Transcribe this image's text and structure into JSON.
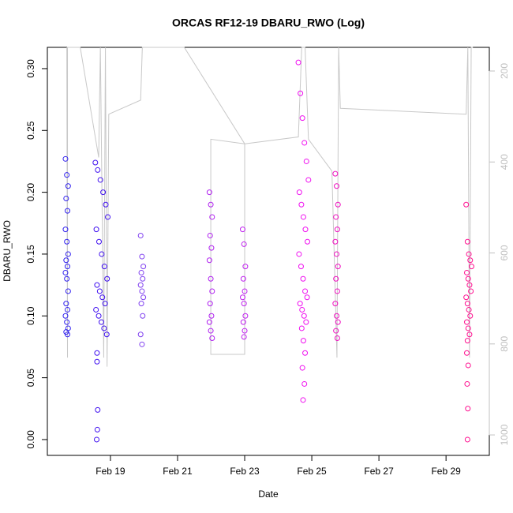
{
  "chart_data": {
    "type": "scatter",
    "title": "ORCAS RF12-19 DBARU_RWO (Log)",
    "x_label": "Date",
    "y_label": "DBARU_RWO",
    "xlim": [
      17.12,
      30.29
    ],
    "xticks": [
      {
        "value": 19,
        "label": "Feb 19"
      },
      {
        "value": 21,
        "label": "Feb 21"
      },
      {
        "value": 23,
        "label": "Feb 23"
      },
      {
        "value": 25,
        "label": "Feb 25"
      },
      {
        "value": 27,
        "label": "Feb 27"
      },
      {
        "value": 29,
        "label": "Feb 29"
      }
    ],
    "ylim": [
      -0.0128,
      0.3172
    ],
    "yticks": [
      {
        "value": 0,
        "label": "0.00"
      },
      {
        "value": 0.05,
        "label": "0.05"
      },
      {
        "value": 0.1,
        "label": "0.10"
      },
      {
        "value": 0.15,
        "label": "0.15"
      },
      {
        "value": 0.2,
        "label": "0.20"
      },
      {
        "value": 0.25,
        "label": "0.25"
      },
      {
        "value": 0.3,
        "label": "0.30"
      }
    ],
    "y2lim": [
      1045,
      148
    ],
    "y2ticks": [
      200,
      400,
      600,
      800,
      1000
    ],
    "y2_color": "#c0c0c0",
    "series": [
      {
        "color": "#3020f0",
        "x": [
          17.66,
          17.7,
          17.74,
          17.68,
          17.72,
          17.66,
          17.7,
          17.74,
          17.68,
          17.72,
          17.66,
          17.7,
          17.74,
          17.68,
          17.72,
          17.66,
          17.7,
          17.74,
          17.68,
          17.72
        ],
        "values": [
          0.227,
          0.214,
          0.205,
          0.195,
          0.185,
          0.17,
          0.16,
          0.15,
          0.145,
          0.14,
          0.135,
          0.13,
          0.12,
          0.11,
          0.105,
          0.1,
          0.095,
          0.09,
          0.087,
          0.085
        ]
      },
      {
        "color": "#4010f0",
        "x": [
          18.55,
          18.62,
          18.7,
          18.78,
          18.86,
          18.92,
          18.58,
          18.66,
          18.74,
          18.82,
          18.9,
          18.6,
          18.68,
          18.76,
          18.84,
          18.57,
          18.65,
          18.73,
          18.81,
          18.89,
          18.6,
          18.6,
          18.62,
          18.61,
          18.59
        ],
        "values": [
          0.224,
          0.218,
          0.21,
          0.2,
          0.19,
          0.18,
          0.17,
          0.16,
          0.15,
          0.14,
          0.13,
          0.125,
          0.12,
          0.115,
          0.11,
          0.105,
          0.1,
          0.095,
          0.09,
          0.085,
          0.07,
          0.063,
          0.024,
          0.008,
          0
        ]
      },
      {
        "color": "#8040f0",
        "x": [
          19.9,
          19.94,
          19.98,
          19.92,
          19.96,
          19.9,
          19.94,
          19.98,
          19.92,
          19.96,
          19.9,
          19.94
        ],
        "values": [
          0.165,
          0.148,
          0.14,
          0.135,
          0.13,
          0.125,
          0.12,
          0.115,
          0.11,
          0.1,
          0.085,
          0.077
        ]
      },
      {
        "color": "#b020f0",
        "x": [
          21.95,
          21.99,
          22.03,
          21.97,
          22.01,
          21.95,
          21.99,
          22.03,
          21.97,
          22.01,
          21.95,
          21.99,
          22.03
        ],
        "values": [
          0.2,
          0.19,
          0.18,
          0.165,
          0.155,
          0.145,
          0.13,
          0.12,
          0.11,
          0.1,
          0.095,
          0.088,
          0.082
        ]
      },
      {
        "color": "#c020f0",
        "x": [
          22.94,
          22.98,
          23.02,
          22.96,
          23.0,
          22.94,
          22.98,
          23.02,
          22.96,
          23.0,
          22.98
        ],
        "values": [
          0.17,
          0.158,
          0.14,
          0.13,
          0.12,
          0.115,
          0.11,
          0.1,
          0.095,
          0.088,
          0.083
        ]
      },
      {
        "color": "#f010f0",
        "x": [
          24.6,
          24.66,
          24.72,
          24.78,
          24.84,
          24.9,
          24.63,
          24.69,
          24.75,
          24.81,
          24.87,
          24.62,
          24.68,
          24.74,
          24.8,
          24.86,
          24.65,
          24.71,
          24.77,
          24.83,
          24.7,
          24.75,
          24.8,
          24.72,
          24.78,
          24.74
        ],
        "values": [
          0.305,
          0.28,
          0.26,
          0.24,
          0.225,
          0.21,
          0.2,
          0.19,
          0.18,
          0.17,
          0.16,
          0.15,
          0.14,
          0.13,
          0.12,
          0.115,
          0.11,
          0.105,
          0.1,
          0.095,
          0.09,
          0.08,
          0.07,
          0.058,
          0.045,
          0.032
        ]
      },
      {
        "color": "#f010c0",
        "x": [
          25.7,
          25.74,
          25.78,
          25.72,
          25.76,
          25.7,
          25.74,
          25.78,
          25.72,
          25.76,
          25.7,
          25.74,
          25.78,
          25.72,
          25.76
        ],
        "values": [
          0.215,
          0.205,
          0.19,
          0.18,
          0.17,
          0.16,
          0.15,
          0.14,
          0.13,
          0.12,
          0.11,
          0.1,
          0.095,
          0.088,
          0.082
        ]
      },
      {
        "color": "#ff1090",
        "x": [
          29.6,
          29.64,
          29.68,
          29.72,
          29.76,
          29.62,
          29.66,
          29.7,
          29.74,
          29.6,
          29.64,
          29.68,
          29.72,
          29.62,
          29.66,
          29.7,
          29.64,
          29.62,
          29.66,
          29.63,
          29.65,
          29.64
        ],
        "values": [
          0.19,
          0.16,
          0.15,
          0.145,
          0.14,
          0.135,
          0.13,
          0.125,
          0.12,
          0.115,
          0.11,
          0.105,
          0.1,
          0.095,
          0.09,
          0.085,
          0.08,
          0.07,
          0.06,
          0.045,
          0.025,
          0
        ]
      },
      {
        "color": "#c8c8c8",
        "axis": "y2",
        "x": [
          17.7,
          17.72,
          17.72,
          18.1,
          18.65,
          18.7,
          18.8,
          18.85,
          18.9,
          18.95,
          19.9,
          19.95,
          21.2,
          23.0,
          23.0,
          21.99,
          21.99,
          23.0,
          24.6,
          24.7,
          24.8,
          24.9,
          25.6,
          25.75,
          25.8,
          25.85,
          29.6,
          29.65,
          29.7,
          29.75,
          29.8
        ],
        "values": [
          148,
          830,
          148,
          148,
          390,
          148,
          830,
          148,
          850,
          295,
          264,
          148,
          148,
          360,
          823,
          823,
          350,
          360,
          345,
          148,
          148,
          350,
          420,
          830,
          148,
          282,
          295,
          148,
          830,
          148,
          148
        ]
      }
    ]
  }
}
